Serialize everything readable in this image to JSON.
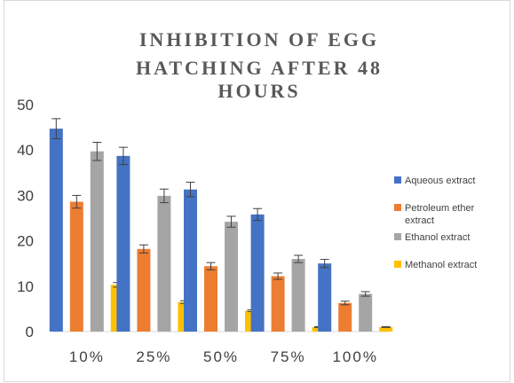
{
  "chart_data": {
    "type": "bar",
    "title_lines": [
      "INHIBITION OF EGG",
      "HATCHING AFTER 48",
      "HOURS"
    ],
    "categories": [
      "10%",
      "25%",
      "50%",
      "75%",
      "100%"
    ],
    "ylim": [
      0,
      50
    ],
    "yticks": [
      0,
      10,
      20,
      30,
      40,
      50
    ],
    "grid": false,
    "legend_position": "right",
    "series": [
      {
        "name": "Aqueous extract",
        "color": "#4472c4",
        "values": [
          44.7,
          38.7,
          31.3,
          25.8,
          15.0
        ],
        "errors": [
          2.2,
          1.9,
          1.6,
          1.3,
          0.9
        ]
      },
      {
        "name": "Petroleum ether extract",
        "color": "#ed7d31",
        "values": [
          28.6,
          18.2,
          14.4,
          12.2,
          6.3
        ],
        "errors": [
          1.4,
          0.9,
          0.8,
          0.7,
          0.4
        ]
      },
      {
        "name": "Ethanol extract",
        "color": "#a5a5a5",
        "values": [
          39.7,
          29.9,
          24.2,
          16.0,
          8.3
        ],
        "errors": [
          2.0,
          1.5,
          1.2,
          0.8,
          0.5
        ]
      },
      {
        "name": "Methanol extract",
        "color": "#ffc000",
        "values": [
          10.3,
          6.5,
          4.6,
          1.0,
          1.0
        ],
        "errors": [
          0.5,
          0.3,
          0.2,
          0.1,
          0.1
        ]
      }
    ],
    "legend_lines": [
      [
        "Aqueous extract"
      ],
      [
        "Petroleum ether",
        "extract"
      ],
      [
        "Ethanol extract"
      ],
      [
        "Methanol extract"
      ]
    ]
  }
}
